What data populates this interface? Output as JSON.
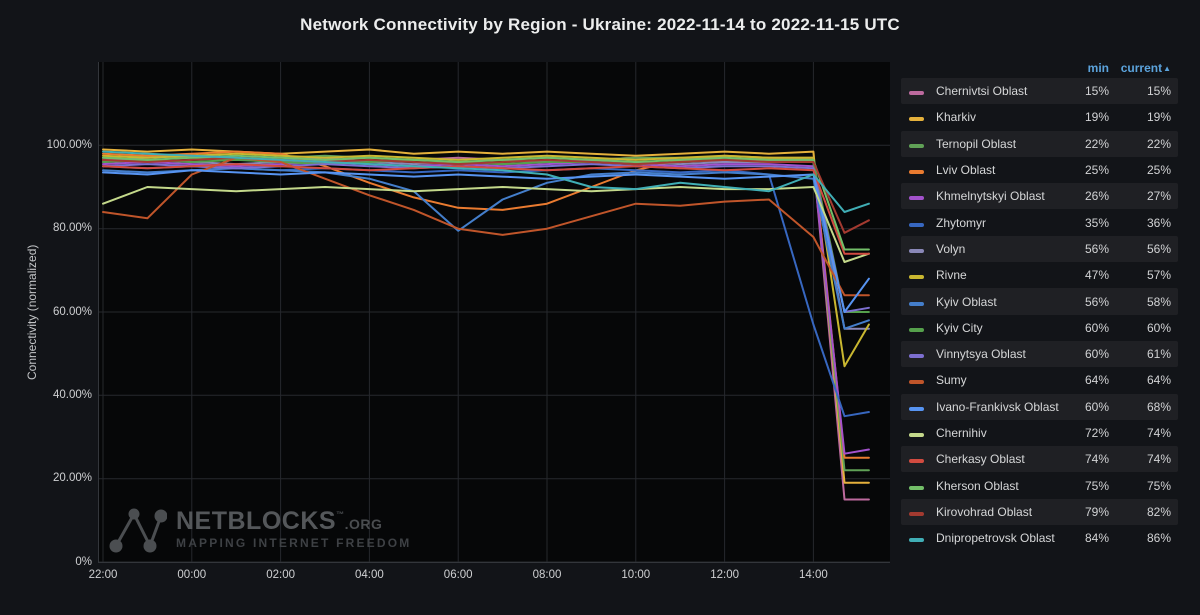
{
  "header": {
    "title": "Network Connectivity by Region - Ukraine: 2022-11-14 to 2022-11-15 UTC"
  },
  "y_axis_title": "Connectivity (normalized)",
  "legend": {
    "min_label": "min",
    "current_label": "current",
    "sort_arrow": "▲"
  },
  "watermark": {
    "brand": "NETBLOCKS",
    "tm": "™",
    "suffix": ".ORG",
    "tagline": "MAPPING INTERNET FREEDOM"
  },
  "chart_data": {
    "type": "line",
    "title": "Network Connectivity by Region - Ukraine: 2022-11-14 to 2022-11-15 UTC",
    "ylabel": "Connectivity (normalized)",
    "ylim": [
      0,
      120
    ],
    "grid": true,
    "legend_position": "right",
    "x_ticks": [
      {
        "t": 0,
        "label": "22:00"
      },
      {
        "t": 2,
        "label": "00:00"
      },
      {
        "t": 4,
        "label": "02:00"
      },
      {
        "t": 6,
        "label": "04:00"
      },
      {
        "t": 8,
        "label": "06:00"
      },
      {
        "t": 10,
        "label": "08:00"
      },
      {
        "t": 12,
        "label": "10:00"
      },
      {
        "t": 14,
        "label": "12:00"
      },
      {
        "t": 16,
        "label": "14:00"
      }
    ],
    "y_ticks": [
      {
        "value": 0,
        "label": "0%"
      },
      {
        "value": 20,
        "label": "20.00%"
      },
      {
        "value": 40,
        "label": "40.00%"
      },
      {
        "value": 60,
        "label": "60.00%"
      },
      {
        "value": 80,
        "label": "80.00%"
      },
      {
        "value": 100,
        "label": "100.00%"
      }
    ],
    "crash_geometry": {
      "min_t": 16.7,
      "current_t": 17.25,
      "hours_per_point": 1
    },
    "series": [
      {
        "name": "Chernivtsi Oblast",
        "color": "#bd6a9e",
        "min": 15,
        "current": 15,
        "values": [
          96.5,
          97,
          97.5,
          97,
          96.5,
          97,
          96,
          96.5,
          97,
          96.5,
          96,
          96.5,
          97,
          96.5,
          96,
          96.5,
          96.5
        ]
      },
      {
        "name": "Kharkiv",
        "color": "#e5b13c",
        "min": 19,
        "current": 19,
        "values": [
          99,
          98.5,
          99,
          98.5,
          98,
          98.5,
          99,
          98,
          98.5,
          98,
          98.5,
          98,
          97.5,
          98,
          98.5,
          98,
          98.5
        ]
      },
      {
        "name": "Ternopil Oblast",
        "color": "#60a156",
        "min": 22,
        "current": 22,
        "values": [
          97,
          97.5,
          97,
          96.5,
          97,
          97.5,
          97,
          96.5,
          96,
          96.5,
          97,
          96.5,
          97,
          97,
          96.5,
          97,
          96.5
        ]
      },
      {
        "name": "Lviv Oblast",
        "color": "#ea7b30",
        "min": 25,
        "current": 25,
        "values": [
          98,
          97.5,
          98,
          98.5,
          98,
          95,
          91,
          87.5,
          85,
          84.5,
          86,
          90,
          94,
          96.5,
          97.5,
          97,
          97
        ]
      },
      {
        "name": "Khmelnytskyi Oblast",
        "color": "#a352cc",
        "min": 26,
        "current": 27,
        "values": [
          95.5,
          96,
          95.5,
          95,
          95.5,
          96,
          95.5,
          95,
          95.5,
          95,
          95.5,
          96,
          95.5,
          95,
          95.5,
          95.5,
          95
        ]
      },
      {
        "name": "Zhytomyr",
        "color": "#3767c0",
        "min": 35,
        "current": 36,
        "values": [
          95,
          94.5,
          95,
          94.5,
          94,
          94.5,
          94,
          93.5,
          94,
          93.5,
          94,
          94.5,
          94,
          93.5,
          94,
          93,
          57
        ]
      },
      {
        "name": "Volyn",
        "color": "#8a88b8",
        "min": 56,
        "current": 56,
        "values": [
          96,
          96.5,
          96,
          95.5,
          96,
          96.5,
          96,
          95.5,
          96,
          95.5,
          96,
          96.5,
          96,
          95.5,
          96,
          96,
          96
        ]
      },
      {
        "name": "Rivne",
        "color": "#c9b730",
        "min": 47,
        "current": 57,
        "values": [
          97.5,
          97,
          97.5,
          98,
          97.5,
          97,
          97.5,
          97,
          96.5,
          97,
          97.5,
          97,
          96.5,
          97,
          97.5,
          97,
          97
        ]
      },
      {
        "name": "Kyiv Oblast",
        "color": "#447ecb",
        "min": 56,
        "current": 58,
        "values": [
          94,
          93.5,
          94,
          94.5,
          94,
          93.5,
          92,
          89,
          79.5,
          87,
          91,
          93,
          93.5,
          93,
          93.5,
          93,
          92
        ]
      },
      {
        "name": "Kyiv City",
        "color": "#55a04c",
        "min": 60,
        "current": 60,
        "values": [
          96,
          96.5,
          96,
          96.5,
          96,
          95.5,
          96,
          96.5,
          96,
          95.5,
          96,
          96,
          95.5,
          96,
          96.5,
          96,
          96
        ]
      },
      {
        "name": "Vinnytsya Oblast",
        "color": "#7d6fd0",
        "min": 60,
        "current": 61,
        "values": [
          95,
          95.5,
          95,
          94.5,
          95,
          95.5,
          95,
          94.5,
          95,
          94.5,
          95,
          95.5,
          95,
          94.5,
          95,
          95,
          94.5
        ]
      },
      {
        "name": "Sumy",
        "color": "#c0552a",
        "min": 64,
        "current": 64,
        "values": [
          84,
          82.5,
          93,
          97,
          96,
          92,
          88,
          84.5,
          80,
          78.5,
          80,
          83,
          86,
          85.5,
          86.5,
          87,
          78
        ]
      },
      {
        "name": "Ivano-Frankivsk Oblast",
        "color": "#5794f2",
        "min": 60,
        "current": 68,
        "values": [
          93.5,
          93,
          94,
          93.5,
          93,
          93.5,
          93,
          92.5,
          93,
          92.5,
          92,
          92.5,
          93,
          92.5,
          92,
          92.5,
          93
        ]
      },
      {
        "name": "Chernihiv",
        "color": "#c4d98b",
        "min": 72,
        "current": 74,
        "values": [
          86,
          90,
          89.5,
          89,
          89.5,
          90,
          89.5,
          89,
          89.5,
          90,
          89.5,
          89,
          89.5,
          90,
          89.5,
          89.5,
          90
        ]
      },
      {
        "name": "Cherkasy Oblast",
        "color": "#d24b40",
        "min": 74,
        "current": 74,
        "values": [
          95,
          94.5,
          95,
          95.5,
          95,
          94.5,
          94,
          94.5,
          95,
          94.5,
          94,
          94.5,
          95,
          94.5,
          94,
          94.5,
          94
        ]
      },
      {
        "name": "Kherson Oblast",
        "color": "#73bf69",
        "min": 75,
        "current": 75,
        "values": [
          97,
          96.5,
          97,
          97.5,
          97,
          96.5,
          97,
          96.5,
          96,
          96.5,
          97,
          96.5,
          96,
          96.5,
          97,
          96.5,
          96.5
        ]
      },
      {
        "name": "Kirovohrad Oblast",
        "color": "#a33a30",
        "min": 79,
        "current": 82,
        "values": [
          96.5,
          96,
          96.5,
          97,
          96.5,
          96,
          96.5,
          96,
          95.5,
          96,
          96.5,
          96,
          95.5,
          96,
          96.5,
          96,
          96
        ]
      },
      {
        "name": "Dnipropetrovsk Oblast",
        "color": "#40aeb5",
        "min": 84,
        "current": 86,
        "values": [
          98.5,
          98,
          97.5,
          97,
          96.5,
          96,
          95.5,
          95,
          94.5,
          94,
          93,
          90,
          89.5,
          91,
          90,
          89,
          93
        ]
      }
    ]
  }
}
